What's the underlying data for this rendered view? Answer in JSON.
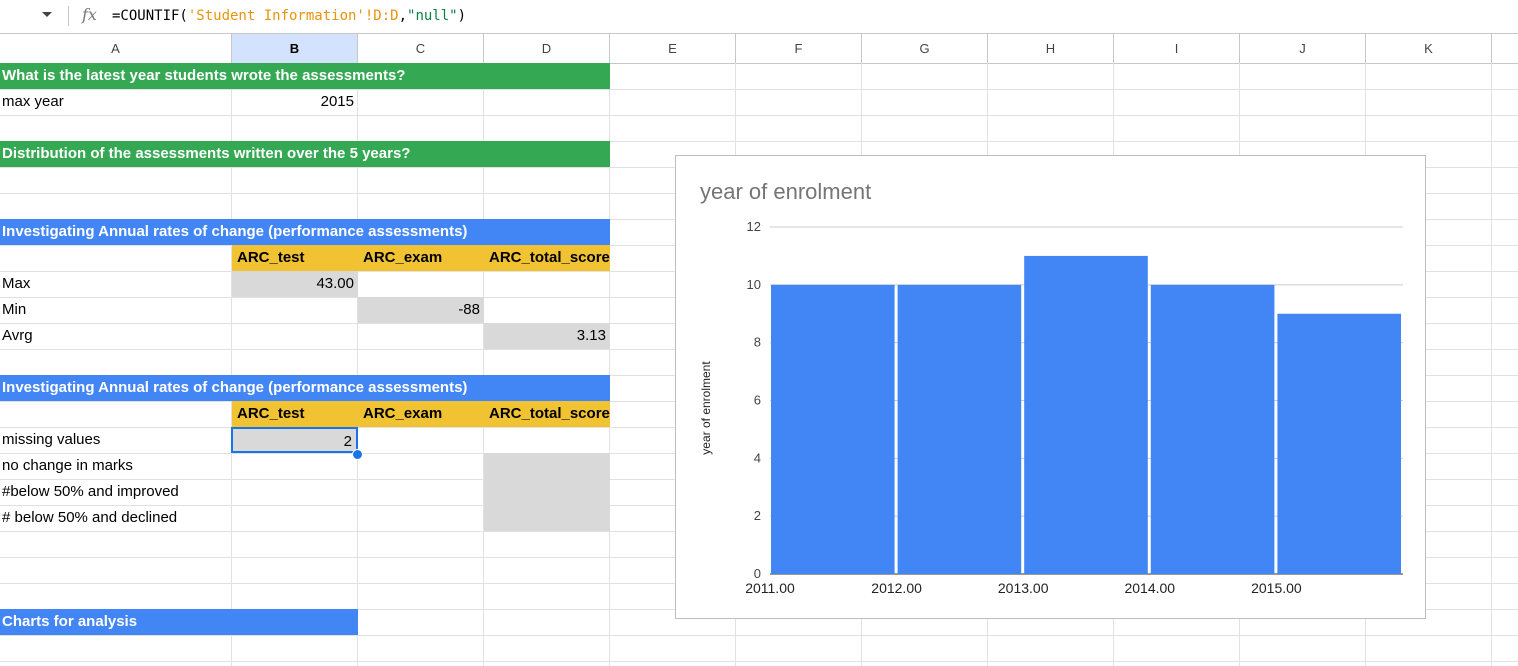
{
  "formula_bar": {
    "fx_icon": "fx-icon",
    "prefix": "=COUNTIF(",
    "range": "'Student Information'!D:D",
    "separator": ",",
    "criterion": "\"null\"",
    "suffix": ")"
  },
  "columns": [
    "A",
    "B",
    "C",
    "D",
    "E",
    "F",
    "G",
    "H",
    "I",
    "J",
    "K"
  ],
  "cells": {
    "q1_title": "What is the latest year students wrote the assessments?",
    "max_year_label": "max year",
    "max_year_value": "2015",
    "q2_title": "Distribution of the assessments written over the 5 years?",
    "arc1_title": "Investigating Annual rates of change (performance assessments)",
    "arc1_h_test": "ARC_test",
    "arc1_h_exam": "ARC_exam",
    "arc1_h_total": "ARC_total_score",
    "max_label": "Max",
    "max_value": "43.00",
    "min_label": "Min",
    "min_value": "-88",
    "avg_label": "Avrg",
    "avg_value": "3.13",
    "arc2_title": "Investigating Annual rates of change (performance assessments)",
    "arc2_h_test": "ARC_test",
    "arc2_h_exam": "ARC_exam",
    "arc2_h_total": "ARC_total_score",
    "missing_label": "missing values",
    "missing_value": "2",
    "nochange_label": "no change in marks",
    "below_improved_label": "#below 50% and improved",
    "below_declined_label": "# below 50% and declined",
    "charts_title": "Charts for analysis"
  },
  "colors": {
    "green_header": "#34a853",
    "blue_header": "#4285f4",
    "yellow_header": "#f1c232",
    "gray_fill": "#d9d9d9",
    "bar": "#4285f4"
  },
  "chart_data": {
    "type": "bar",
    "title": "year of enrolment",
    "ylabel": "year of enrolment",
    "xlabel": "",
    "x_tick_labels": [
      "2011.00",
      "2012.00",
      "2013.00",
      "2014.00",
      "2015.00"
    ],
    "values": [
      10,
      10,
      11,
      10,
      9
    ],
    "ylim": [
      0,
      12
    ],
    "y_ticks": [
      0,
      2,
      4,
      6,
      8,
      10,
      12
    ],
    "grid": true,
    "color": "#4285f4"
  }
}
